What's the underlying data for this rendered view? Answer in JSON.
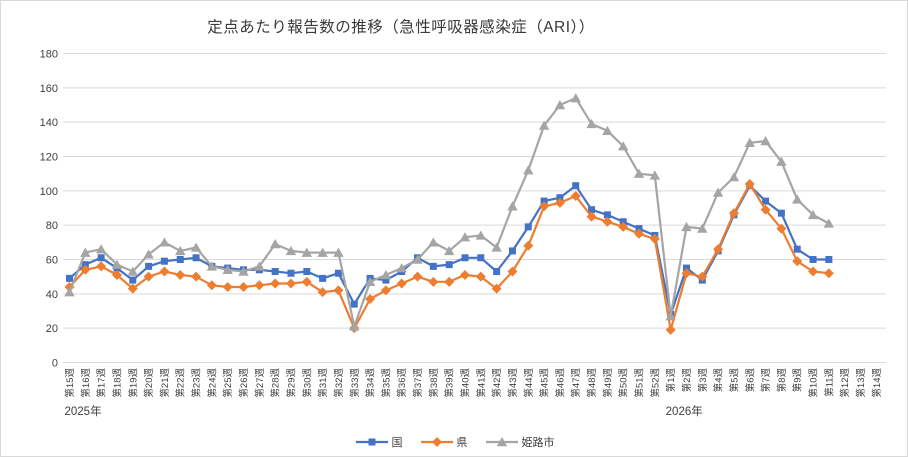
{
  "chart_data": {
    "type": "line",
    "title": "定点あたり報告数の推移（急性呼吸器感染症（ARI））",
    "xlabel": "",
    "ylabel": "",
    "ylim": [
      0,
      180
    ],
    "y_tick_step": 20,
    "y_ticks": [
      0,
      20,
      40,
      60,
      80,
      100,
      120,
      140,
      160,
      180
    ],
    "grid": "horizontal",
    "grid_color": "#d9d9d9",
    "text_color": "#404040",
    "legend_position": "bottom",
    "year_groups": [
      {
        "label": "2025年",
        "start_index": 0
      },
      {
        "label": "2026年",
        "start_index": 38
      }
    ],
    "categories": [
      "第15週",
      "第16週",
      "第17週",
      "第18週",
      "第19週",
      "第20週",
      "第21週",
      "第22週",
      "第23週",
      "第24週",
      "第25週",
      "第26週",
      "第27週",
      "第28週",
      "第29週",
      "第30週",
      "第31週",
      "第32週",
      "第33週",
      "第34週",
      "第35週",
      "第36週",
      "第37週",
      "第38週",
      "第39週",
      "第40週",
      "第41週",
      "第42週",
      "第43週",
      "第44週",
      "第45週",
      "第46週",
      "第47週",
      "第48週",
      "第49週",
      "第50週",
      "第51週",
      "第52週",
      "第1週",
      "第2週",
      "第3週",
      "第4週",
      "第5週",
      "第6週",
      "第7週",
      "第8週",
      "第9週",
      "第10週",
      "第11週",
      "第12週",
      "第13週",
      "第14週"
    ],
    "series": [
      {
        "name": "国",
        "color": "#4472C4",
        "marker": "square",
        "values": [
          49,
          57,
          61,
          55,
          48,
          56,
          59,
          60,
          61,
          56,
          55,
          54,
          54,
          53,
          52,
          53,
          49,
          52,
          34,
          49,
          48,
          53,
          61,
          56,
          57,
          61,
          61,
          53,
          65,
          79,
          94,
          96,
          103,
          89,
          86,
          82,
          78,
          74,
          28,
          55,
          48,
          65,
          86,
          103,
          94,
          87,
          66,
          60,
          60,
          null,
          null,
          null
        ]
      },
      {
        "name": "県",
        "color": "#ED7D31",
        "marker": "diamond",
        "values": [
          44,
          54,
          56,
          51,
          43,
          50,
          53,
          51,
          50,
          45,
          44,
          44,
          45,
          46,
          46,
          47,
          41,
          42,
          20,
          37,
          42,
          46,
          50,
          47,
          47,
          51,
          50,
          43,
          53,
          68,
          91,
          93,
          97,
          85,
          82,
          79,
          75,
          72,
          19,
          52,
          50,
          66,
          87,
          104,
          89,
          78,
          59,
          53,
          52,
          null,
          null,
          null
        ]
      },
      {
        "name": "姫路市",
        "color": "#A5A5A5",
        "marker": "triangle",
        "values": [
          41,
          64,
          66,
          57,
          53,
          63,
          70,
          65,
          67,
          56,
          54,
          53,
          56,
          69,
          65,
          64,
          64,
          64,
          21,
          47,
          51,
          55,
          60,
          70,
          65,
          73,
          74,
          67,
          91,
          112,
          138,
          150,
          154,
          139,
          135,
          126,
          110,
          109,
          27,
          79,
          78,
          99,
          108,
          128,
          129,
          117,
          95,
          86,
          81,
          null,
          null,
          null
        ]
      }
    ]
  }
}
